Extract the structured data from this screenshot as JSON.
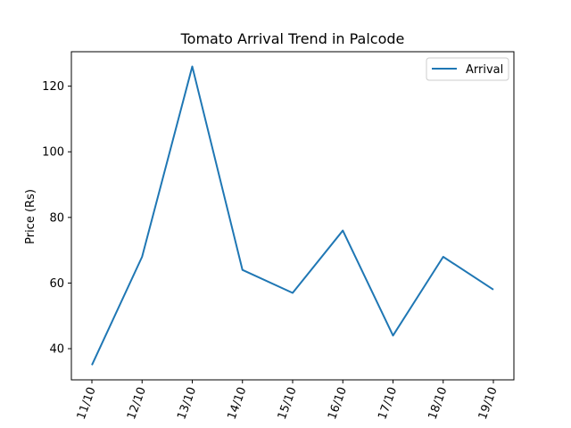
{
  "chart_data": {
    "type": "line",
    "title": "Tomato Arrival Trend in Palcode",
    "xlabel": "",
    "ylabel": "Price (Rs)",
    "categories": [
      "11/10",
      "12/10",
      "13/10",
      "14/10",
      "15/10",
      "16/10",
      "17/10",
      "18/10",
      "19/10"
    ],
    "series": [
      {
        "name": "Arrival",
        "values": [
          35,
          68,
          126,
          64,
          57,
          76,
          44,
          68,
          58
        ],
        "color": "#1f77b4"
      }
    ],
    "ylim": [
      30.5,
      130.5
    ],
    "yticks": [
      40,
      60,
      80,
      100,
      120
    ],
    "grid": false,
    "legend": "top-right",
    "xtick_rotation": 70
  }
}
